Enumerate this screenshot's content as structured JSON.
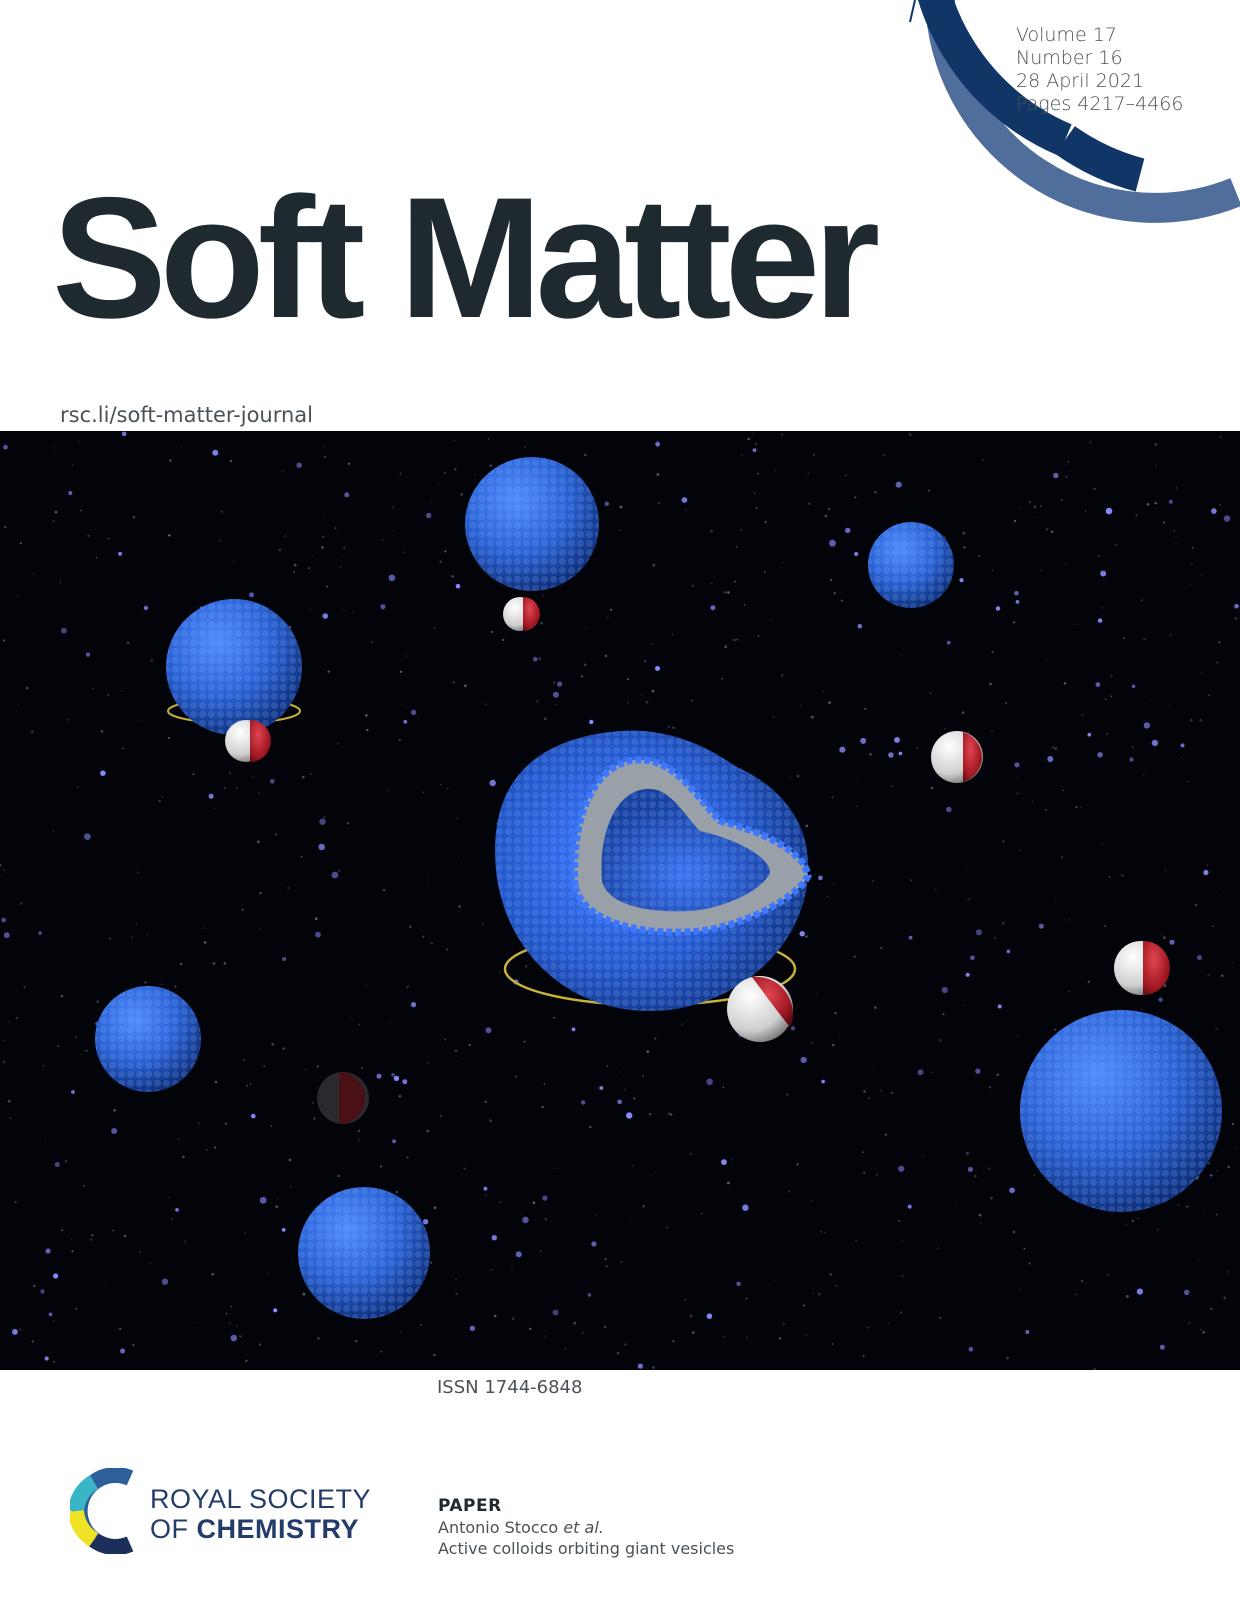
{
  "issue": {
    "volume": "Volume 17",
    "number": "Number 16",
    "date": "28 April 2021",
    "pages": "Pages 4217–4466"
  },
  "journal": {
    "title": "Soft Matter",
    "url": "rsc.li/soft-matter-journal"
  },
  "issn": "ISSN 1744-6848",
  "publisher": {
    "line1": "ROYAL SOCIETY",
    "line2_prefix": "OF ",
    "line2_bold": "CHEMISTRY"
  },
  "paper": {
    "type": "PAPER",
    "author": "Antonio Stocco",
    "author_suffix": "et al.",
    "title": "Active colloids orbiting giant vesicles"
  },
  "colors": {
    "arc_dark": "#0f3667",
    "arc_light": "#4f6e9c",
    "title_text": "#1f2a30",
    "sphere_blue": "#2a62d4",
    "background_space": "#03040a",
    "janus_red": "#b5202a",
    "orbit_yellow": "#c9b23a"
  }
}
